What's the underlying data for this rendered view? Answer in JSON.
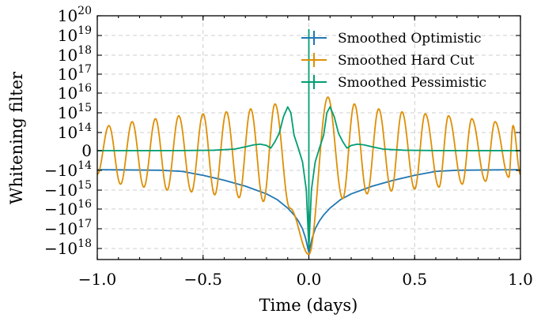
{
  "chart_data": {
    "type": "line",
    "title": "",
    "xlabel": "Time (days)",
    "ylabel": "Whitening filter",
    "xlim": [
      -1.0,
      1.0
    ],
    "y_scale": "symlog",
    "ylim_symlog": [
      -19,
      20
    ],
    "grid": true,
    "legend_position": "top-right",
    "x_ticks": [
      {
        "value": -1.0,
        "label": "−1.0"
      },
      {
        "value": -0.5,
        "label": "−0.5"
      },
      {
        "value": 0.0,
        "label": "0.0"
      },
      {
        "value": 0.5,
        "label": "0.5"
      },
      {
        "value": 1.0,
        "label": "1.0"
      }
    ],
    "y_ticks": [
      {
        "value": 20,
        "base": "10",
        "exp": "20",
        "neg": false
      },
      {
        "value": 19,
        "base": "10",
        "exp": "19",
        "neg": false
      },
      {
        "value": 18,
        "base": "10",
        "exp": "18",
        "neg": false
      },
      {
        "value": 17,
        "base": "10",
        "exp": "17",
        "neg": false
      },
      {
        "value": 16,
        "base": "10",
        "exp": "16",
        "neg": false
      },
      {
        "value": 15,
        "base": "10",
        "exp": "15",
        "neg": false
      },
      {
        "value": 14,
        "base": "10",
        "exp": "14",
        "neg": false
      },
      {
        "value": 0,
        "base": "0",
        "exp": "",
        "neg": false
      },
      {
        "value": -14,
        "base": "−10",
        "exp": "14",
        "neg": true
      },
      {
        "value": -15,
        "base": "−10",
        "exp": "15",
        "neg": true
      },
      {
        "value": -16,
        "base": "−10",
        "exp": "16",
        "neg": true
      },
      {
        "value": -17,
        "base": "−10",
        "exp": "17",
        "neg": true
      },
      {
        "value": -18,
        "base": "−10",
        "exp": "18",
        "neg": true
      }
    ],
    "series": [
      {
        "name": "Smoothed Optimistic",
        "color": "#1f77b4",
        "x": [
          -1.0,
          -0.9,
          -0.8,
          -0.7,
          -0.6,
          -0.5,
          -0.4,
          -0.3,
          -0.2,
          -0.15,
          -0.1,
          -0.07,
          -0.05,
          -0.03,
          -0.015,
          0.0,
          0.015,
          0.03,
          0.05,
          0.07,
          0.1,
          0.15,
          0.2,
          0.3,
          0.4,
          0.5,
          0.6,
          0.7,
          0.8,
          0.9,
          1.0
        ],
        "y": [
          -13.5,
          -13.6,
          -13.75,
          -13.9,
          -14.05,
          -14.25,
          -14.5,
          -14.8,
          -15.2,
          -15.5,
          -15.95,
          -16.3,
          -16.6,
          -17.0,
          -17.5,
          -18.2,
          -17.5,
          -17.0,
          -16.6,
          -16.3,
          -15.95,
          -15.5,
          -15.2,
          -14.8,
          -14.5,
          -14.25,
          -14.05,
          -13.9,
          -13.75,
          -13.6,
          -13.5
        ]
      },
      {
        "name": "Smoothed Hard Cut",
        "color": "#de8f05",
        "oscillation": {
          "upper_peaks": [
            -0.945,
            -0.835,
            -0.725,
            -0.615,
            -0.5,
            -0.39,
            -0.275,
            -0.16,
            0.09,
            0.215,
            0.33,
            0.44,
            0.55,
            0.66,
            0.77,
            0.88,
            0.965
          ],
          "upper_values": [
            14.35,
            14.55,
            14.7,
            14.85,
            14.95,
            15.05,
            15.2,
            15.45,
            15.8,
            15.45,
            15.2,
            15.05,
            14.95,
            14.85,
            14.7,
            14.55,
            14.35
          ],
          "lower_troughs": [
            -0.89,
            -0.78,
            -0.67,
            -0.555,
            -0.445,
            -0.33,
            -0.215,
            -0.09,
            0.16,
            0.275,
            0.39,
            0.5,
            0.615,
            0.725,
            0.835,
            0.945
          ],
          "lower_values": [
            -14.7,
            -14.85,
            -15.0,
            -15.1,
            -15.25,
            -15.4,
            -15.6,
            -15.95,
            -15.45,
            -15.2,
            -15.05,
            -14.95,
            -14.85,
            -14.7,
            -14.55,
            -14.35
          ],
          "center_spike": -18.3,
          "endpoint_left": -14.2,
          "endpoint_right": -14.2
        }
      },
      {
        "name": "Smoothed Pessimistic",
        "color": "#029e73",
        "x": [
          -1.0,
          -0.8,
          -0.6,
          -0.45,
          -0.35,
          -0.3,
          -0.26,
          -0.23,
          -0.2,
          -0.18,
          -0.16,
          -0.14,
          -0.12,
          -0.1,
          -0.085,
          -0.07,
          -0.05,
          -0.03,
          -0.012,
          0.0,
          0.0,
          0.0,
          0.012,
          0.03,
          0.05,
          0.07,
          0.085,
          0.1,
          0.12,
          0.14,
          0.16,
          0.18,
          0.2,
          0.23,
          0.26,
          0.3,
          0.35,
          0.45,
          0.6,
          0.8,
          1.0
        ],
        "y": [
          0.02,
          0.04,
          0.1,
          0.35,
          1.2,
          3.0,
          4.5,
          5.0,
          4.0,
          2.0,
          7.0,
          13.5,
          14.8,
          15.3,
          15.0,
          12.0,
          2.0,
          -8.0,
          -15.0,
          -18.0,
          19.3,
          -18.0,
          -15.0,
          -8.0,
          2.0,
          12.0,
          15.0,
          15.3,
          14.8,
          13.5,
          7.0,
          2.0,
          4.0,
          5.0,
          4.5,
          3.0,
          1.2,
          0.35,
          0.1,
          0.04,
          0.02
        ]
      }
    ]
  }
}
